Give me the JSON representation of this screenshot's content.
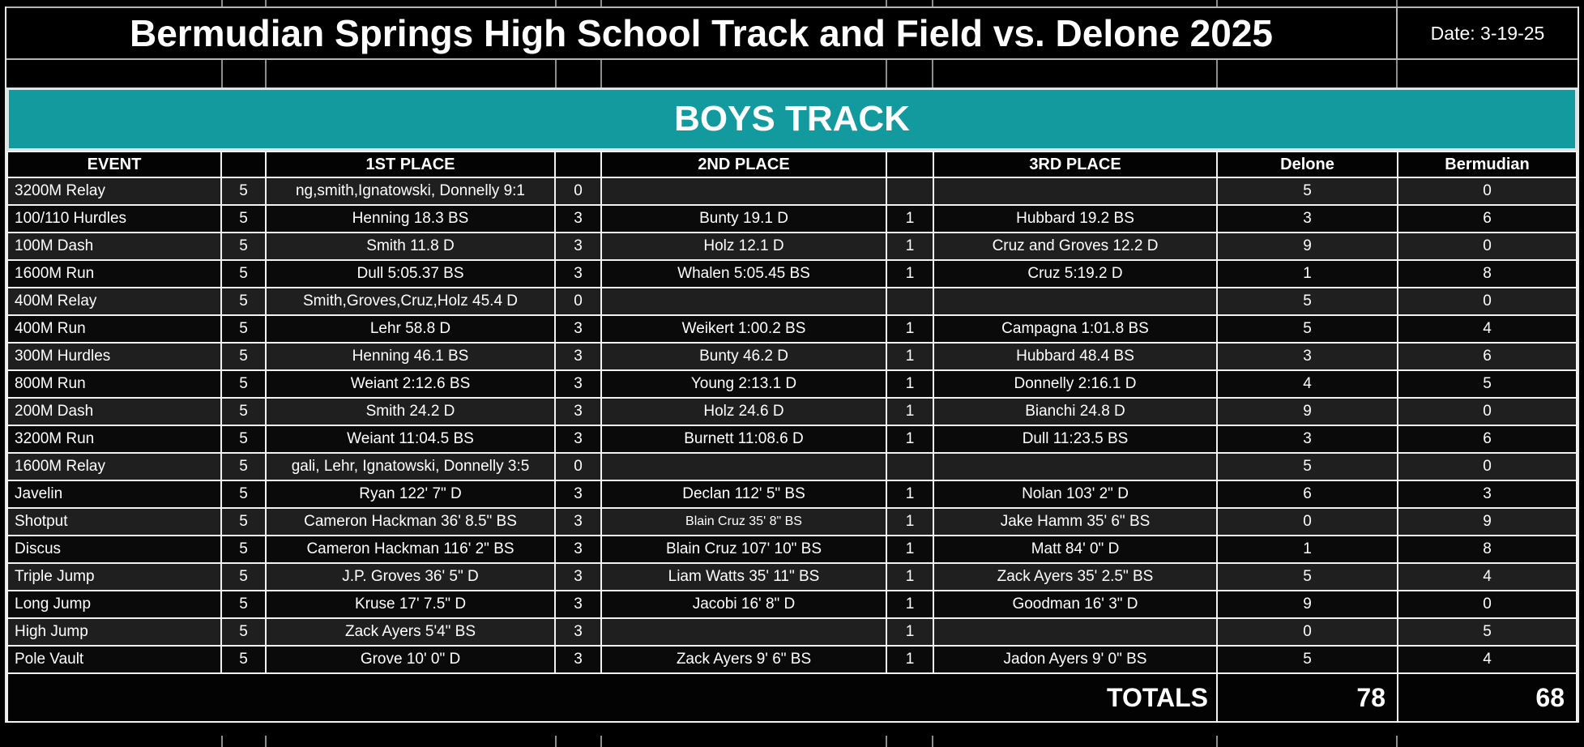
{
  "title": "Bermudian Springs High School Track and Field vs. Delone 2025",
  "date_label": "Date: 3-19-25",
  "section": {
    "header": "BOYS TRACK"
  },
  "colors": {
    "banner_teal": "#139a9f",
    "background": "#000000",
    "gridline": "#f2f2f2",
    "text": "#ffffff"
  },
  "table": {
    "columns": [
      "EVENT",
      "",
      "1ST PLACE",
      "",
      "2ND PLACE",
      "",
      "3RD PLACE",
      "Delone",
      "Bermudian"
    ],
    "rows": [
      {
        "event": "3200M Relay",
        "pts_a": "5",
        "first": "ng,smith,Ignatowski, Donnelly 9:1",
        "pts_b": "0",
        "second": "",
        "pts_c": "",
        "third": "",
        "delone": "5",
        "bermudian": "0"
      },
      {
        "event": "100/110 Hurdles",
        "pts_a": "5",
        "first": "Henning 18.3 BS",
        "pts_b": "3",
        "second": "Bunty 19.1 D",
        "pts_c": "1",
        "third": "Hubbard 19.2 BS",
        "delone": "3",
        "bermudian": "6"
      },
      {
        "event": "100M Dash",
        "pts_a": "5",
        "first": "Smith 11.8 D",
        "pts_b": "3",
        "second": "Holz 12.1 D",
        "pts_c": "1",
        "third": "Cruz and Groves 12.2 D",
        "delone": "9",
        "bermudian": "0"
      },
      {
        "event": "1600M Run",
        "pts_a": "5",
        "first": "Dull 5:05.37 BS",
        "pts_b": "3",
        "second": "Whalen 5:05.45 BS",
        "pts_c": "1",
        "third": "Cruz 5:19.2 D",
        "delone": "1",
        "bermudian": "8"
      },
      {
        "event": "400M Relay",
        "pts_a": "5",
        "first": "Smith,Groves,Cruz,Holz 45.4 D",
        "pts_b": "0",
        "second": "",
        "pts_c": "",
        "third": "",
        "delone": "5",
        "bermudian": "0"
      },
      {
        "event": "400M Run",
        "pts_a": "5",
        "first": "Lehr 58.8 D",
        "pts_b": "3",
        "second": "Weikert 1:00.2 BS",
        "pts_c": "1",
        "third": "Campagna 1:01.8 BS",
        "delone": "5",
        "bermudian": "4"
      },
      {
        "event": "300M Hurdles",
        "pts_a": "5",
        "first": "Henning 46.1 BS",
        "pts_b": "3",
        "second": "Bunty 46.2 D",
        "pts_c": "1",
        "third": "Hubbard 48.4 BS",
        "delone": "3",
        "bermudian": "6"
      },
      {
        "event": "800M Run",
        "pts_a": "5",
        "first": "Weiant 2:12.6 BS",
        "pts_b": "3",
        "second": "Young 2:13.1 D",
        "pts_c": "1",
        "third": "Donnelly 2:16.1 D",
        "delone": "4",
        "bermudian": "5"
      },
      {
        "event": "200M Dash",
        "pts_a": "5",
        "first": "Smith 24.2 D",
        "pts_b": "3",
        "second": "Holz 24.6 D",
        "pts_c": "1",
        "third": "Bianchi 24.8 D",
        "delone": "9",
        "bermudian": "0"
      },
      {
        "event": "3200M Run",
        "pts_a": "5",
        "first": "Weiant 11:04.5 BS",
        "pts_b": "3",
        "second": "Burnett 11:08.6 D",
        "pts_c": "1",
        "third": "Dull 11:23.5 BS",
        "delone": "3",
        "bermudian": "6"
      },
      {
        "event": "1600M Relay",
        "pts_a": "5",
        "first": "gali, Lehr, Ignatowski, Donnelly 3:5",
        "pts_b": "0",
        "second": "",
        "pts_c": "",
        "third": "",
        "delone": "5",
        "bermudian": "0"
      },
      {
        "event": "Javelin",
        "pts_a": "5",
        "first": "Ryan 122' 7\" D",
        "pts_b": "3",
        "second": "Declan 112' 5\" BS",
        "pts_c": "1",
        "third": "Nolan 103' 2\" D",
        "delone": "6",
        "bermudian": "3"
      },
      {
        "event": "Shotput",
        "pts_a": "5",
        "first": "Cameron Hackman 36' 8.5\" BS",
        "pts_b": "3",
        "second": "Blain Cruz 35' 8\" BS",
        "second_small": true,
        "pts_c": "1",
        "third": "Jake Hamm 35' 6\" BS",
        "delone": "0",
        "bermudian": "9"
      },
      {
        "event": "Discus",
        "pts_a": "5",
        "first": "Cameron Hackman 116' 2\" BS",
        "pts_b": "3",
        "second": "Blain Cruz 107' 10\" BS",
        "pts_c": "1",
        "third": "Matt 84' 0\" D",
        "delone": "1",
        "bermudian": "8"
      },
      {
        "event": "Triple Jump",
        "pts_a": "5",
        "first": "J.P. Groves  36' 5\" D",
        "pts_b": "3",
        "second": "Liam Watts 35' 11\" BS",
        "pts_c": "1",
        "third": "Zack Ayers 35' 2.5\" BS",
        "delone": "5",
        "bermudian": "4"
      },
      {
        "event": "Long Jump",
        "pts_a": "5",
        "first": "Kruse 17' 7.5\" D",
        "pts_b": "3",
        "second": "Jacobi 16' 8\" D",
        "pts_c": "1",
        "third": "Goodman 16' 3\" D",
        "delone": "9",
        "bermudian": "0"
      },
      {
        "event": "High Jump",
        "pts_a": "5",
        "first": "Zack Ayers 5'4\" BS",
        "pts_b": "3",
        "second": "",
        "pts_c": "1",
        "third": "",
        "delone": "0",
        "bermudian": "5"
      },
      {
        "event": "Pole Vault",
        "pts_a": "5",
        "first": "Grove 10' 0\" D",
        "pts_b": "3",
        "second": "Zack Ayers 9' 6\" BS",
        "pts_c": "1",
        "third": "Jadon Ayers 9' 0\" BS",
        "delone": "5",
        "bermudian": "4"
      }
    ],
    "totals": {
      "label": "TOTALS",
      "delone": "78",
      "bermudian": "68"
    }
  }
}
